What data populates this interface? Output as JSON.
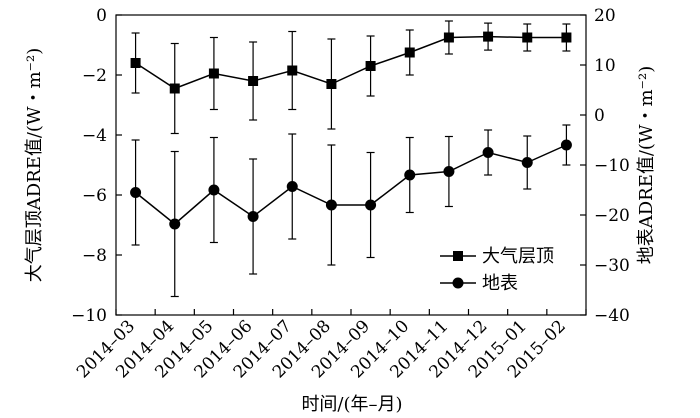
{
  "chart_data": {
    "type": "line",
    "title": "",
    "xlabel": "时间/(年–月)",
    "ylabel_left": "大气层顶ADRE值/(W・m⁻²)",
    "ylabel_right": "地表ADRE值/(W・m⁻²)",
    "categories": [
      "2014–03",
      "2014–04",
      "2014–05",
      "2014–06",
      "2014–07",
      "2014–08",
      "2014–09",
      "2014–10",
      "2014–11",
      "2014–12",
      "2015–01",
      "2015–02"
    ],
    "y_left": {
      "range": [
        -10,
        0
      ],
      "ticks": [
        0,
        -2,
        -4,
        -6,
        -8,
        -10
      ],
      "tick_labels": [
        "0",
        "−2",
        "−4",
        "−6",
        "−8",
        "−10"
      ]
    },
    "y_right": {
      "range": [
        -40,
        20
      ],
      "ticks": [
        20,
        10,
        0,
        -10,
        -20,
        -30,
        -40
      ],
      "tick_labels": [
        "20",
        "10",
        "0",
        "−10",
        "−20",
        "−30",
        "−40"
      ]
    },
    "grid": false,
    "legend_position": "lower-right",
    "series": [
      {
        "name": "大气层顶",
        "axis": "left",
        "marker": "square",
        "values": [
          -1.6,
          -2.45,
          -1.95,
          -2.2,
          -1.85,
          -2.3,
          -1.7,
          -1.25,
          -0.75,
          -0.72,
          -0.75,
          -0.75
        ],
        "error_plus": [
          1.0,
          1.5,
          1.2,
          1.3,
          1.3,
          1.5,
          1.0,
          0.75,
          0.55,
          0.45,
          0.45,
          0.45
        ],
        "error_minus": [
          1.0,
          1.5,
          1.2,
          1.3,
          1.3,
          1.5,
          1.0,
          0.75,
          0.55,
          0.45,
          0.45,
          0.45
        ]
      },
      {
        "name": "地表",
        "axis": "right",
        "marker": "circle",
        "values": [
          -15.5,
          -21.8,
          -15.0,
          -20.3,
          -14.3,
          -18.0,
          -18.0,
          -12.0,
          -11.3,
          -7.5,
          -9.5,
          -6.0
        ],
        "error_plus": [
          10.5,
          14.5,
          10.5,
          11.5,
          10.5,
          12.0,
          10.5,
          7.5,
          7.0,
          4.5,
          5.3,
          4.0
        ],
        "error_minus": [
          10.5,
          14.5,
          10.5,
          11.5,
          10.5,
          12.0,
          10.5,
          7.5,
          7.0,
          4.5,
          5.3,
          4.0
        ]
      }
    ]
  }
}
